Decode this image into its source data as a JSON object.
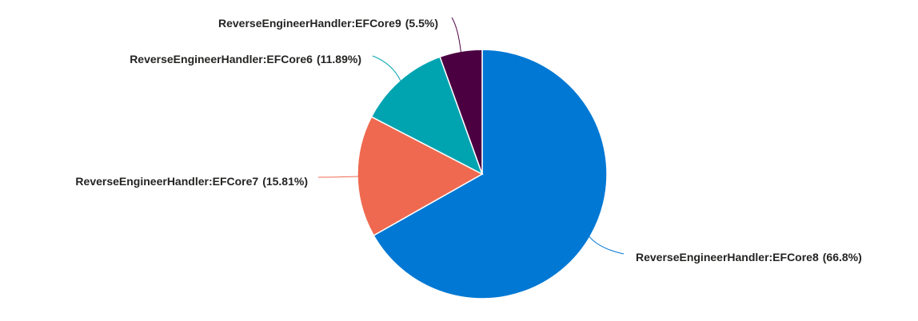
{
  "chart_data": {
    "type": "pie",
    "categories": [
      "ReverseEngineerHandler:EFCore8",
      "ReverseEngineerHandler:EFCore7",
      "ReverseEngineerHandler:EFCore6",
      "ReverseEngineerHandler:EFCore9"
    ],
    "values": [
      66.8,
      15.81,
      11.89,
      5.5
    ],
    "value_labels": [
      "(66.8%)",
      "(15.81%)",
      "(11.89%)",
      "(5.5%)"
    ],
    "colors": [
      "#0078d4",
      "#ef6950",
      "#00a4b0",
      "#4b0042"
    ]
  }
}
